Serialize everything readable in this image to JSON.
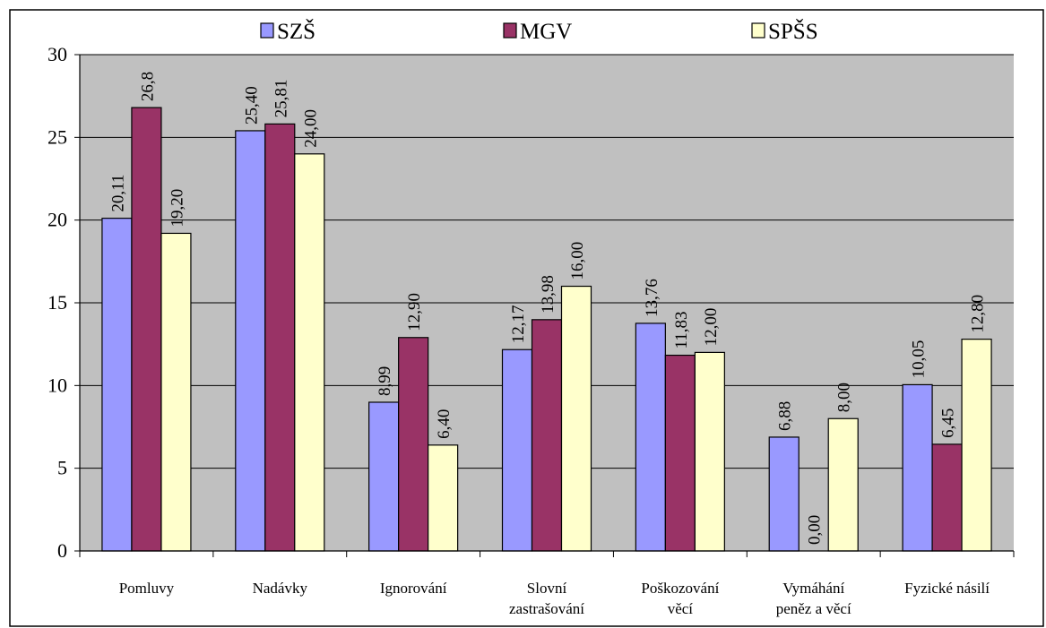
{
  "chart_data": {
    "type": "bar",
    "categories": [
      [
        "Pomluvy"
      ],
      [
        "Nadávky"
      ],
      [
        "Ignorování"
      ],
      [
        "Slovní",
        "zastrašování"
      ],
      [
        "Poškozování",
        "věcí"
      ],
      [
        "Vymáhání",
        "peněz a věcí"
      ],
      [
        "Fyzické násilí"
      ]
    ],
    "series": [
      {
        "name": "SZŠ",
        "color": "#9999ff",
        "values": [
          20.11,
          25.4,
          8.99,
          12.17,
          13.76,
          6.88,
          10.05
        ],
        "labels": [
          "20,11",
          "25,40",
          "8,99",
          "12,17",
          "13,76",
          "6,88",
          "10,05"
        ]
      },
      {
        "name": "MGV",
        "color": "#993366",
        "values": [
          26.8,
          25.81,
          12.9,
          13.98,
          11.83,
          0.0,
          6.45
        ],
        "labels": [
          "26,8",
          "25,81",
          "12,90",
          "13,98",
          "11,83",
          "0,00",
          "6,45"
        ]
      },
      {
        "name": "SPŠS",
        "color": "#ffffcc",
        "values": [
          19.2,
          24.0,
          6.4,
          16.0,
          12.0,
          8.0,
          12.8
        ],
        "labels": [
          "19,20",
          "24,00",
          "6,40",
          "16,00",
          "12,00",
          "8,00",
          "12,80"
        ]
      }
    ],
    "ylim": [
      0,
      30
    ],
    "yticks": [
      0,
      5,
      10,
      15,
      20,
      25,
      30
    ],
    "grid": true,
    "plot_background": "#c0c0c0",
    "legend_position": "top"
  }
}
